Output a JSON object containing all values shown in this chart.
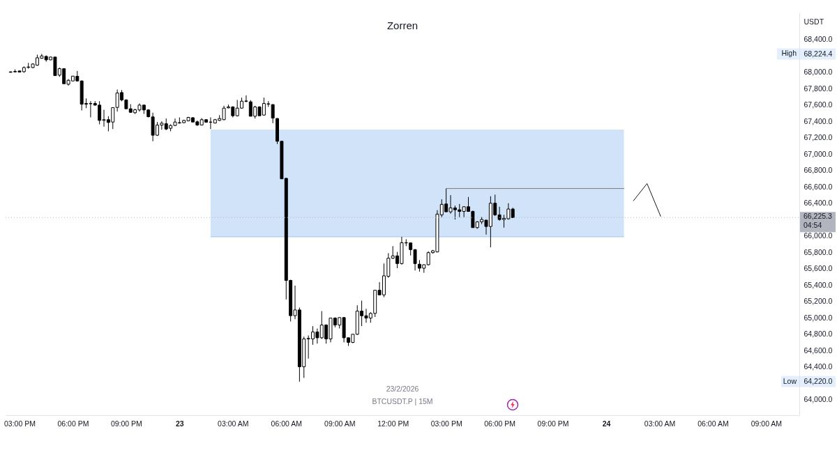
{
  "chart_data": {
    "type": "candlestick",
    "title": "Zorren",
    "ylabel": "USDT",
    "grid": false,
    "xlim": [
      "2026-02-22T14:13",
      "2026-02-24T10:52"
    ],
    "xticks": [
      {
        "value": "2026-02-22T15:00",
        "label": "03:00 PM"
      },
      {
        "value": "2026-02-22T18:00",
        "label": "06:00 PM"
      },
      {
        "value": "2026-02-22T21:00",
        "label": "09:00 PM"
      },
      {
        "value": "2026-02-23T00:00",
        "label": "23"
      },
      {
        "value": "2026-02-23T03:00",
        "label": "03:00 AM"
      },
      {
        "value": "2026-02-23T06:00",
        "label": "06:00 AM"
      },
      {
        "value": "2026-02-23T09:00",
        "label": "09:00 AM"
      },
      {
        "value": "2026-02-23T12:00",
        "label": "12:00 PM"
      },
      {
        "value": "2026-02-23T15:00",
        "label": "03:00 PM"
      },
      {
        "value": "2026-02-23T18:00",
        "label": "06:00 PM"
      },
      {
        "value": "2026-02-23T21:00",
        "label": "09:00 PM"
      },
      {
        "value": "2026-02-24T00:00",
        "label": "24"
      },
      {
        "value": "2026-02-24T03:00",
        "label": "03:00 AM"
      },
      {
        "value": "2026-02-24T06:00",
        "label": "06:00 AM"
      },
      {
        "value": "2026-02-24T09:00",
        "label": "09:00 AM"
      }
    ],
    "ylim": [
      63810,
      68730
    ],
    "yticks": [
      {
        "value": 64000,
        "label": "64,000.0"
      },
      {
        "value": 64220.0,
        "label": "64,220.0"
      },
      {
        "value": 64400,
        "label": "64,400.0"
      },
      {
        "value": 64600,
        "label": "64,600.0"
      },
      {
        "value": 64800,
        "label": "64,800.0"
      },
      {
        "value": 65000,
        "label": "65,000.0"
      },
      {
        "value": 65200,
        "label": "65,200.0"
      },
      {
        "value": 65400,
        "label": "65,400.0"
      },
      {
        "value": 65600,
        "label": "65,600.0"
      },
      {
        "value": 65800,
        "label": "65,800.0"
      },
      {
        "value": 66000,
        "label": "66,000.0"
      },
      {
        "value": 66400,
        "label": "66,400.0"
      },
      {
        "value": 66600,
        "label": "66,600.0"
      },
      {
        "value": 66800,
        "label": "66,800.0"
      },
      {
        "value": 67000,
        "label": "67,000.0"
      },
      {
        "value": 67200,
        "label": "67,200.0"
      },
      {
        "value": 67400,
        "label": "67,400.0"
      },
      {
        "value": 67600,
        "label": "67,600.0"
      },
      {
        "value": 67800,
        "label": "67,800.0"
      },
      {
        "value": 68000,
        "label": "68,000.0"
      },
      {
        "value": 68224.4,
        "label": "68,224.4"
      },
      {
        "value": 68400,
        "label": "68,400.0"
      }
    ],
    "ref_lines": [
      {
        "axis": "y",
        "value": 66225.3,
        "label": "66,225.3\n04:54",
        "color": "#b2b5be",
        "line_style": "dotted"
      }
    ],
    "annotations": [
      "High",
      "Low",
      "23/2/2026",
      "BTCUSDT.P | 15M"
    ],
    "series": [
      {
        "type": "line",
        "color": "#a1c7f1",
        "x": [
          "2026-02-23T01:45",
          "2026-02-24T01:00"
        ],
        "values": [
          65990,
          65990
        ],
        "lower": [
          65990,
          65990
        ],
        "upper": [
          67300,
          67300
        ]
      },
      {
        "type": "line",
        "color": "#787b86",
        "x": [
          "2026-02-23T15:00",
          "2026-02-24T01:00"
        ],
        "values": [
          66580,
          66580
        ]
      },
      {
        "type": "line",
        "color": "#131722",
        "x": [
          "2026-02-24T01:32",
          "2026-02-24T02:18",
          "2026-02-24T03:04"
        ],
        "values": [
          66430,
          66640,
          66240
        ]
      },
      {
        "color": "#000000",
        "x": [
          "2026-02-22T14:30",
          "2026-02-22T14:45",
          "2026-02-22T15:00",
          "2026-02-22T15:15",
          "2026-02-22T15:30",
          "2026-02-22T15:45",
          "2026-02-22T16:00",
          "2026-02-22T16:15",
          "2026-02-22T16:30",
          "2026-02-22T16:45",
          "2026-02-22T17:00",
          "2026-02-22T17:15",
          "2026-02-22T17:30",
          "2026-02-22T17:45",
          "2026-02-22T18:00",
          "2026-02-22T18:15",
          "2026-02-22T18:30",
          "2026-02-22T18:45",
          "2026-02-22T19:00",
          "2026-02-22T19:15",
          "2026-02-22T19:30",
          "2026-02-22T19:45",
          "2026-02-22T20:00",
          "2026-02-22T20:15",
          "2026-02-22T20:30",
          "2026-02-22T20:45",
          "2026-02-22T21:00",
          "2026-02-22T21:15",
          "2026-02-22T21:30",
          "2026-02-22T21:45",
          "2026-02-22T22:00",
          "2026-02-22T22:15",
          "2026-02-22T22:30",
          "2026-02-22T22:45",
          "2026-02-22T23:00",
          "2026-02-22T23:15",
          "2026-02-22T23:30",
          "2026-02-22T23:45",
          "2026-02-23T00:00",
          "2026-02-23T00:15",
          "2026-02-23T00:30",
          "2026-02-23T00:45",
          "2026-02-23T01:00",
          "2026-02-23T01:15",
          "2026-02-23T01:30",
          "2026-02-23T01:45",
          "2026-02-23T02:00",
          "2026-02-23T02:15",
          "2026-02-23T02:30",
          "2026-02-23T02:45",
          "2026-02-23T03:00",
          "2026-02-23T03:15",
          "2026-02-23T03:30",
          "2026-02-23T03:45",
          "2026-02-23T04:00",
          "2026-02-23T04:15",
          "2026-02-23T04:30",
          "2026-02-23T04:45",
          "2026-02-23T05:00",
          "2026-02-23T05:15",
          "2026-02-23T05:30",
          "2026-02-23T05:45",
          "2026-02-23T06:00",
          "2026-02-23T06:15",
          "2026-02-23T06:30",
          "2026-02-23T06:45",
          "2026-02-23T07:00",
          "2026-02-23T07:15",
          "2026-02-23T07:30",
          "2026-02-23T07:45",
          "2026-02-23T08:00",
          "2026-02-23T08:15",
          "2026-02-23T08:30",
          "2026-02-23T08:45",
          "2026-02-23T09:00",
          "2026-02-23T09:15",
          "2026-02-23T09:30",
          "2026-02-23T09:45",
          "2026-02-23T10:00",
          "2026-02-23T10:15",
          "2026-02-23T10:30",
          "2026-02-23T10:45",
          "2026-02-23T11:00",
          "2026-02-23T11:15",
          "2026-02-23T11:30",
          "2026-02-23T11:45",
          "2026-02-23T12:00",
          "2026-02-23T12:15",
          "2026-02-23T12:30",
          "2026-02-23T12:45",
          "2026-02-23T13:00",
          "2026-02-23T13:15",
          "2026-02-23T13:30",
          "2026-02-23T13:45",
          "2026-02-23T14:00",
          "2026-02-23T14:15",
          "2026-02-23T14:30",
          "2026-02-23T14:45",
          "2026-02-23T15:00",
          "2026-02-23T15:15",
          "2026-02-23T15:30",
          "2026-02-23T15:45",
          "2026-02-23T16:00",
          "2026-02-23T16:15",
          "2026-02-23T16:30",
          "2026-02-23T16:45",
          "2026-02-23T17:00",
          "2026-02-23T17:15",
          "2026-02-23T17:30",
          "2026-02-23T17:45",
          "2026-02-23T18:00",
          "2026-02-23T18:15",
          "2026-02-23T18:30",
          "2026-02-23T18:45"
        ],
        "ohlc": [
          [
            68000,
            68012,
            67995,
            68005
          ],
          [
            68010,
            68035,
            68002,
            68005
          ],
          [
            68016,
            68020,
            67998,
            68002
          ],
          [
            68007,
            68072,
            67995,
            68058
          ],
          [
            68060,
            68115,
            68044,
            68065
          ],
          [
            68058,
            68110,
            68050,
            68101
          ],
          [
            68087,
            68215,
            68080,
            68177
          ],
          [
            68172,
            68224.4,
            68165,
            68200
          ],
          [
            68194,
            68206,
            68129,
            68152
          ],
          [
            68152,
            68190,
            68148,
            68186
          ],
          [
            68186,
            68190,
            67959,
            67959
          ],
          [
            67965,
            68058,
            67945,
            68044
          ],
          [
            68044,
            68050,
            67860,
            67860
          ],
          [
            67854,
            67917,
            67837,
            67902
          ],
          [
            67894,
            67955,
            67890,
            67953
          ],
          [
            67951,
            68016,
            67888,
            67894
          ],
          [
            67894,
            67900,
            67534,
            67610
          ],
          [
            67610,
            67681,
            67562,
            67619
          ],
          [
            67619,
            67647,
            67449,
            67615
          ],
          [
            67619,
            67647,
            67591,
            67599
          ],
          [
            67599,
            67647,
            67364,
            67412
          ],
          [
            67412,
            67542,
            67336,
            67421
          ],
          [
            67421,
            67463,
            67279,
            67387
          ],
          [
            67392,
            67568,
            67307,
            67568
          ],
          [
            67571,
            67789,
            67520,
            67747
          ],
          [
            67752,
            67783,
            67647,
            67662
          ],
          [
            67662,
            67670,
            67554,
            67554
          ],
          [
            67554,
            67610,
            67506,
            67511
          ],
          [
            67506,
            67554,
            67491,
            67542
          ],
          [
            67540,
            67619,
            67520,
            67599
          ],
          [
            67599,
            67605,
            67491,
            67540
          ],
          [
            67540,
            67548,
            67449,
            67457
          ],
          [
            67455,
            67506,
            67157,
            67231
          ],
          [
            67231,
            67392,
            67222,
            67355
          ],
          [
            67355,
            67401,
            67299,
            67378
          ],
          [
            67372,
            67435,
            67293,
            67307
          ],
          [
            67316,
            67364,
            67279,
            67350
          ],
          [
            67350,
            67435,
            67344,
            67392
          ],
          [
            67380,
            67449,
            67372,
            67385
          ],
          [
            67384,
            67420,
            67380,
            67412
          ],
          [
            67407,
            67455,
            67400,
            67449
          ],
          [
            67445,
            67450,
            67392,
            67392
          ],
          [
            67395,
            67410,
            67345,
            67356
          ],
          [
            67356,
            67440,
            67350,
            67421
          ],
          [
            67421,
            67425,
            67387,
            67390
          ],
          [
            67390,
            67449,
            67307,
            67392
          ],
          [
            67380,
            67430,
            67375,
            67421
          ],
          [
            67412,
            67477,
            67405,
            67435
          ],
          [
            67421,
            67591,
            67415,
            67562
          ],
          [
            67565,
            67605,
            67560,
            67577
          ],
          [
            67577,
            67585,
            67449,
            67469
          ],
          [
            67469,
            67662,
            67460,
            67562
          ],
          [
            67562,
            67690,
            67555,
            67647
          ],
          [
            67645,
            67718,
            67633,
            67650
          ],
          [
            67639,
            67660,
            67463,
            67463
          ],
          [
            67463,
            67590,
            67435,
            67577
          ],
          [
            67577,
            67585,
            67469,
            67469
          ],
          [
            67477,
            67690,
            67470,
            67619
          ],
          [
            67611,
            67647,
            67577,
            67615
          ],
          [
            67605,
            67611,
            67378,
            67441
          ],
          [
            67435,
            67440,
            67123,
            67157
          ],
          [
            67157,
            67160,
            66698,
            66698
          ],
          [
            66704,
            66710,
            65224,
            65457
          ],
          [
            65457,
            65465,
            64955,
            65026
          ],
          [
            65026,
            65394,
            64983,
            65096
          ],
          [
            65096,
            65125,
            64220,
            64402
          ],
          [
            64402,
            64770,
            64266,
            64742
          ],
          [
            64742,
            64785,
            64501,
            64748
          ],
          [
            64742,
            64898,
            64671,
            64827
          ],
          [
            64827,
            64869,
            64685,
            64756
          ],
          [
            64756,
            65082,
            64742,
            64912
          ],
          [
            64912,
            64920,
            64685,
            64742
          ],
          [
            64742,
            65000,
            64700,
            64997
          ],
          [
            64997,
            65005,
            64884,
            64912
          ],
          [
            64912,
            65005,
            64870,
            65003
          ],
          [
            65003,
            65010,
            64700,
            64756
          ],
          [
            64756,
            64760,
            64657,
            64700
          ],
          [
            64700,
            64800,
            64690,
            64799
          ],
          [
            64799,
            65153,
            64790,
            65082
          ],
          [
            65082,
            65210,
            64898,
            65025
          ],
          [
            65025,
            65110,
            64940,
            64997
          ],
          [
            64997,
            65068,
            64940,
            65054
          ],
          [
            65054,
            65337,
            65010,
            65337
          ],
          [
            65337,
            65436,
            65275,
            65280
          ],
          [
            65280,
            65663,
            65252,
            65513
          ],
          [
            65507,
            65790,
            65490,
            65728
          ],
          [
            65728,
            65876,
            65720,
            65757
          ],
          [
            65757,
            65805,
            65606,
            65663
          ],
          [
            65663,
            65989,
            65650,
            65918
          ],
          [
            65918,
            65960,
            65876,
            65915
          ],
          [
            65915,
            65920,
            65762,
            65833
          ],
          [
            65833,
            65840,
            65578,
            65663
          ],
          [
            65655,
            65705,
            65564,
            65606
          ],
          [
            65606,
            65650,
            65550,
            65649
          ],
          [
            65649,
            65813,
            65640,
            65796
          ],
          [
            65796,
            65830,
            65785,
            65819
          ],
          [
            65805,
            66315,
            65800,
            66267
          ],
          [
            66258,
            66448,
            66230,
            66386
          ],
          [
            66391,
            66578,
            66295,
            66295
          ],
          [
            66295,
            66499,
            66272,
            66343
          ],
          [
            66343,
            66371,
            66201,
            66320
          ],
          [
            66320,
            66391,
            66230,
            66300
          ],
          [
            66300,
            66360,
            66230,
            66357
          ],
          [
            66357,
            66476,
            66295,
            66300
          ],
          [
            66300,
            66310,
            66102,
            66102
          ],
          [
            66102,
            66180,
            66088,
            66173
          ],
          [
            66173,
            66230,
            66145,
            66201
          ],
          [
            66193,
            66200,
            66017,
            66116
          ],
          [
            66116,
            66485,
            65861,
            66400
          ],
          [
            66400,
            66505,
            66244,
            66258
          ],
          [
            66258,
            66357,
            66187,
            66201
          ],
          [
            66201,
            66258,
            66102,
            66215
          ],
          [
            66210,
            66400,
            66200,
            66329
          ],
          [
            66329,
            66345,
            66220,
            66225.3
          ]
        ]
      }
    ]
  }
}
